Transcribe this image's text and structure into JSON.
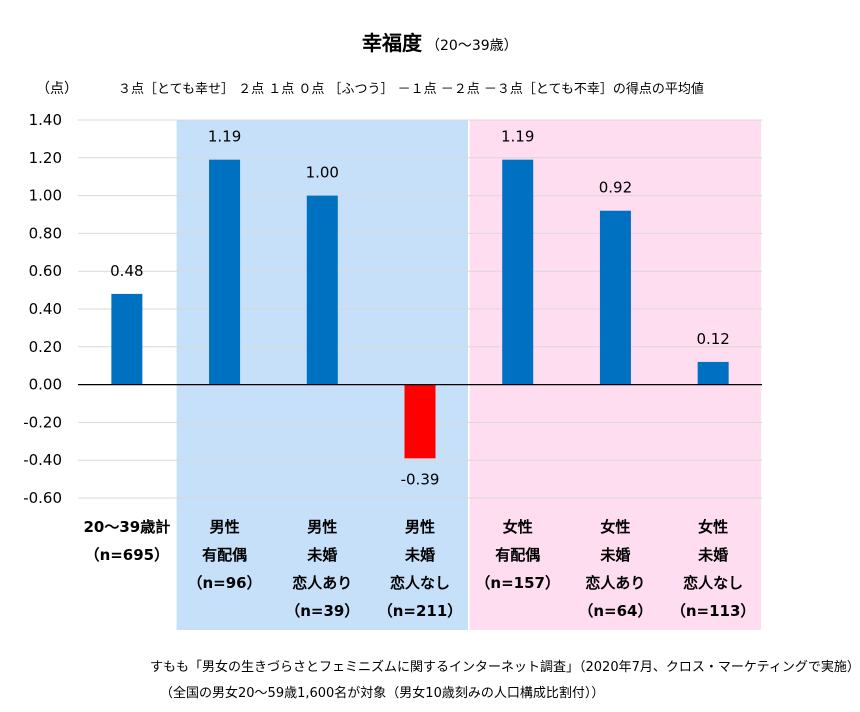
{
  "chart_data": {
    "type": "bar",
    "title": "幸福度",
    "subtitle": "（20〜39歳）",
    "ylabel": "（点）",
    "scale_note": "３点［とても幸せ］ ２点 １点 ０点 ［ふつう］ －１点 －２点 －３点［とても不幸］の得点の平均値",
    "ylim": [
      -0.6,
      1.4
    ],
    "yticks": [
      "1.40",
      "1.20",
      "1.00",
      "0.80",
      "0.60",
      "0.40",
      "0.20",
      "0.00",
      "-0.20",
      "-0.40",
      "-0.60"
    ],
    "grid": true,
    "categories": [
      [
        "20〜39歳計",
        "（n=695）"
      ],
      [
        "男性",
        "有配偶",
        "（n=96）"
      ],
      [
        "男性",
        "未婚",
        "恋人あり",
        "（n=39）"
      ],
      [
        "男性",
        "未婚",
        "恋人なし",
        "（n=211）"
      ],
      [
        "女性",
        "有配偶",
        "（n=157）"
      ],
      [
        "女性",
        "未婚",
        "恋人あり",
        "（n=64）"
      ],
      [
        "女性",
        "未婚",
        "恋人なし",
        "（n=113）"
      ]
    ],
    "values": [
      0.48,
      1.19,
      1.0,
      -0.39,
      1.19,
      0.92,
      0.12
    ],
    "value_labels": [
      "0.48",
      "1.19",
      "1.00",
      "-0.39",
      "1.19",
      "0.92",
      "0.12"
    ],
    "colors": {
      "bar": "#0070C0",
      "negative_bar": "#FF0000",
      "male_band": "#C5E0F8",
      "female_band": "#FFDDF0",
      "grid": "#D9D9D9",
      "axis": "#000000"
    }
  },
  "source": {
    "line1": "すもも「男女の生きづらさとフェミニズムに関するインターネット調査」（2020年7月、クロス・マーケティングで実施）",
    "line2": "（全国の男女20〜59歳1,600名が対象（男女10歳刻みの人口構成比割付））"
  }
}
